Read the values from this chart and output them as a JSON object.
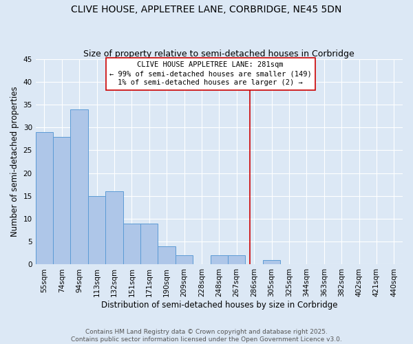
{
  "title": "CLIVE HOUSE, APPLETREE LANE, CORBRIDGE, NE45 5DN",
  "subtitle": "Size of property relative to semi-detached houses in Corbridge",
  "xlabel": "Distribution of semi-detached houses by size in Corbridge",
  "ylabel": "Number of semi-detached properties",
  "categories": [
    "55sqm",
    "74sqm",
    "94sqm",
    "113sqm",
    "132sqm",
    "151sqm",
    "171sqm",
    "190sqm",
    "209sqm",
    "228sqm",
    "248sqm",
    "267sqm",
    "286sqm",
    "305sqm",
    "325sqm",
    "344sqm",
    "363sqm",
    "382sqm",
    "402sqm",
    "421sqm",
    "440sqm"
  ],
  "values": [
    29,
    28,
    34,
    15,
    16,
    9,
    9,
    4,
    2,
    0,
    2,
    2,
    0,
    1,
    0,
    0,
    0,
    0,
    0,
    0,
    0
  ],
  "bar_color": "#aec6e8",
  "bar_edge_color": "#5b9bd5",
  "background_color": "#dce8f5",
  "grid_color": "#ffffff",
  "ylim": [
    0,
    45
  ],
  "yticks": [
    0,
    5,
    10,
    15,
    20,
    25,
    30,
    35,
    40,
    45
  ],
  "vline_x_index": 11.74,
  "vline_color": "#cc0000",
  "annotation_title": "CLIVE HOUSE APPLETREE LANE: 281sqm",
  "annotation_line1": "← 99% of semi-detached houses are smaller (149)",
  "annotation_line2": "1% of semi-detached houses are larger (2) →",
  "annotation_box_color": "#ffffff",
  "annotation_edge_color": "#cc0000",
  "footer_line1": "Contains HM Land Registry data © Crown copyright and database right 2025.",
  "footer_line2": "Contains public sector information licensed under the Open Government Licence v3.0.",
  "title_fontsize": 10,
  "subtitle_fontsize": 9,
  "axis_label_fontsize": 8.5,
  "tick_fontsize": 7.5,
  "annotation_fontsize": 7.5,
  "footer_fontsize": 6.5
}
